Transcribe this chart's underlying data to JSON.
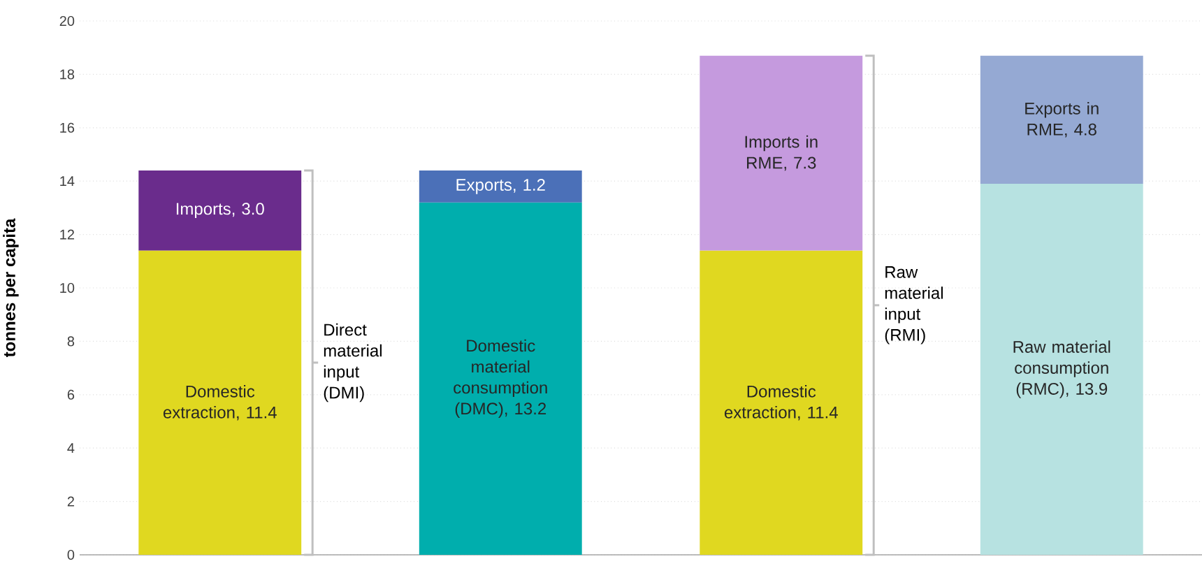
{
  "chart_data": {
    "type": "bar",
    "stacked": true,
    "ylabel": "tonnes per capita",
    "categories": [
      null,
      null,
      null,
      null
    ],
    "ylim": [
      0,
      20
    ],
    "yticks": [
      0,
      2,
      4,
      6,
      8,
      10,
      12,
      14,
      16,
      18,
      20
    ],
    "grid": "y",
    "series": [
      {
        "values": [
          11.4,
          13.2,
          11.4,
          13.9
        ],
        "colors": [
          "#e0d820",
          "#00aead",
          "#e0d820",
          "#b7e2e1"
        ],
        "value_labels": [
          "Domestic extraction, 11.4",
          "Domestic material consumption (DMC), 13.2",
          "Domestic extraction, 11.4",
          "Raw material consumption (RMC), 13.9"
        ]
      },
      {
        "values": [
          3.0,
          1.2,
          7.3,
          4.8
        ],
        "colors": [
          "#6a2c8c",
          "#4b70b8",
          "#c59ade",
          "#95a9d3"
        ],
        "value_labels": [
          "Imports, 3.0",
          "Exports, 1.2",
          "Imports in RME, 7.3",
          "Exports in RME, 4.8"
        ]
      }
    ],
    "annotations": [
      "Direct material input (DMI)",
      "Raw material input (RMI)"
    ]
  }
}
